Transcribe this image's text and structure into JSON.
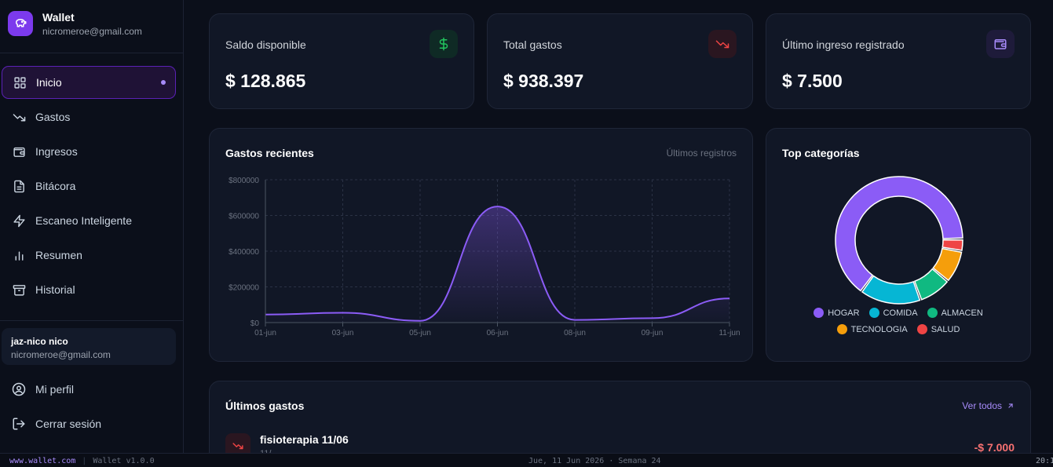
{
  "brand": {
    "title": "Wallet",
    "email": "nicromeroe@gmail.com"
  },
  "nav": [
    {
      "label": "Inicio",
      "icon": "grid-icon",
      "active": true
    },
    {
      "label": "Gastos",
      "icon": "trending-down-icon"
    },
    {
      "label": "Ingresos",
      "icon": "wallet-icon"
    },
    {
      "label": "Bitácora",
      "icon": "document-icon"
    },
    {
      "label": "Escaneo Inteligente",
      "icon": "bolt-icon"
    },
    {
      "label": "Resumen",
      "icon": "bar-chart-icon"
    },
    {
      "label": "Historial",
      "icon": "archive-icon"
    }
  ],
  "user": {
    "name": "jaz-nico nico",
    "email": "nicromeroe@gmail.com"
  },
  "account_nav": [
    {
      "label": "Mi perfil",
      "icon": "user-circle-icon"
    },
    {
      "label": "Cerrar sesión",
      "icon": "logout-icon"
    }
  ],
  "stats": [
    {
      "label": "Saldo disponible",
      "value": "$ 128.865",
      "icon": "dollar-icon",
      "color": "#22c55e"
    },
    {
      "label": "Total gastos",
      "value": "$ 938.397",
      "icon": "trending-down-icon",
      "color": "#ef4444"
    },
    {
      "label": "Último ingreso registrado",
      "value": "$ 7.500",
      "icon": "wallet-icon",
      "color": "#a78bfa"
    }
  ],
  "recent_chart": {
    "title": "Gastos recientes",
    "subtitle": "Últimos registros"
  },
  "categories_card": {
    "title": "Top categorías"
  },
  "chart_data": [
    {
      "type": "area",
      "title": "Gastos recientes",
      "x": [
        "01-jun",
        "03-jun",
        "05-jun",
        "06-jun",
        "08-jun",
        "09-jun",
        "11-jun"
      ],
      "values": [
        45000,
        55000,
        10000,
        650000,
        15000,
        25000,
        135000
      ],
      "yticks": [
        "$800000",
        "$600000",
        "$400000",
        "$200000",
        "$0"
      ],
      "ylim": [
        0,
        800000
      ],
      "grid": true,
      "color": "#8b5cf6"
    },
    {
      "type": "pie",
      "title": "Top categorías",
      "labels": [
        "HOGAR",
        "COMIDA",
        "ALMACEN",
        "TECNOLOGIA",
        "SALUD"
      ],
      "values": [
        62,
        15,
        8,
        8,
        3
      ],
      "colors": [
        "#8b5cf6",
        "#06b6d4",
        "#10b981",
        "#f59e0b",
        "#ef4444"
      ],
      "legend": "bottom"
    }
  ],
  "latest": {
    "title": "Últimos gastos",
    "link": "Ver todos",
    "items": [
      {
        "name": "fisioterapia 11/06",
        "sub": "11/…",
        "amount": "-$ 7.000"
      }
    ]
  },
  "statusbar": {
    "url": "www.wallet.com",
    "version": "Wallet v1.0.0",
    "date": "Jue, 11 Jun 2026 · Semana 24",
    "time": "20:1"
  }
}
